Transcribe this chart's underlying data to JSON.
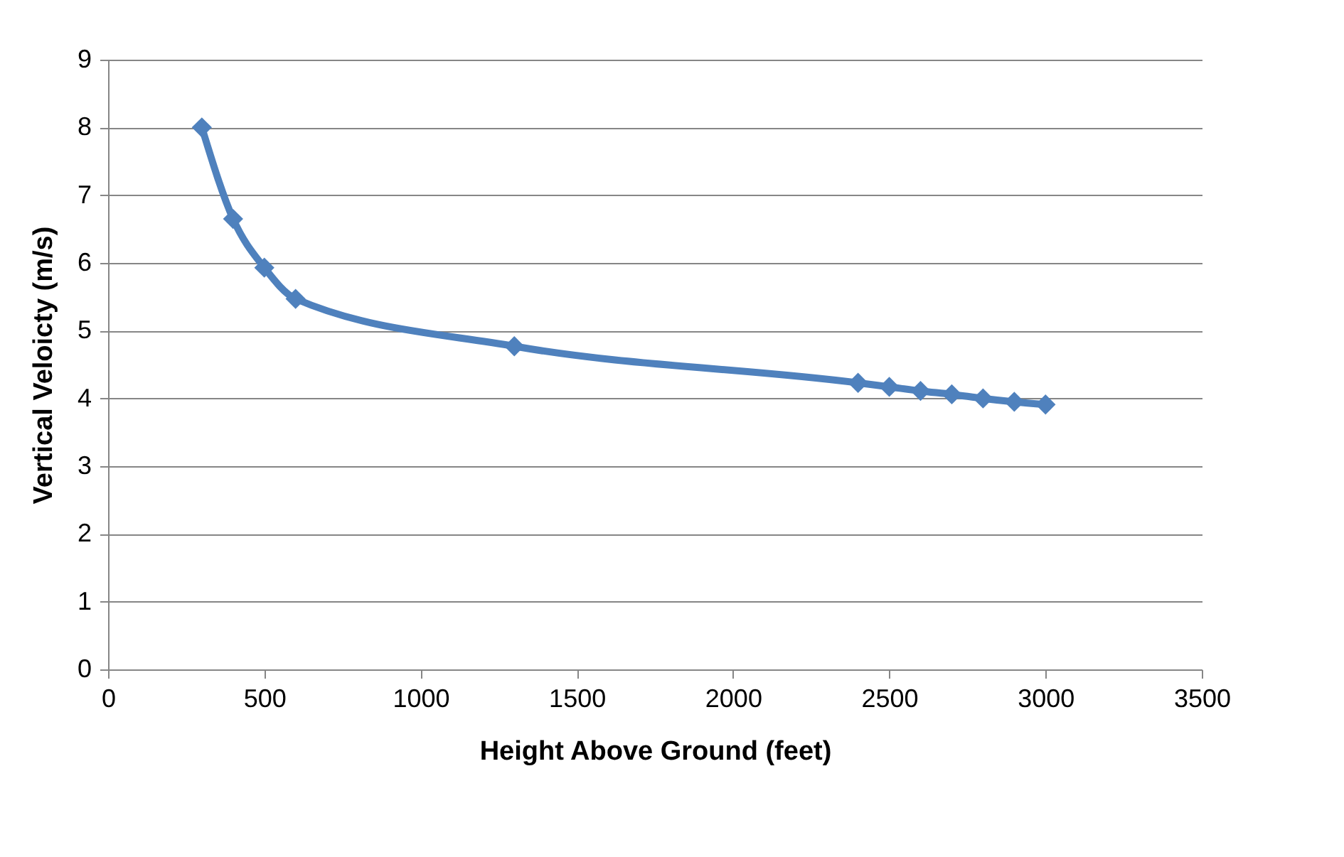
{
  "chart_data": {
    "type": "line",
    "xlabel": "Height Above Ground (feet)",
    "ylabel": "Vertical Veloicty (m/s)",
    "x": [
      300,
      400,
      500,
      600,
      1300,
      2400,
      2500,
      2600,
      2700,
      2800,
      2900,
      3000
    ],
    "series": [
      {
        "color": "#4f81bd",
        "values": [
          8.0,
          6.65,
          5.93,
          5.47,
          4.77,
          4.23,
          4.17,
          4.11,
          4.06,
          4.0,
          3.95,
          3.91
        ]
      }
    ],
    "xlim": [
      0,
      3500
    ],
    "xticks": [
      0,
      500,
      1000,
      1500,
      2000,
      2500,
      3000,
      3500
    ],
    "ylim": [
      0,
      9
    ],
    "yticks": [
      0,
      1,
      2,
      3,
      4,
      5,
      6,
      7,
      8,
      9
    ],
    "grid": "y",
    "marker": "diamond",
    "line_style": "solid"
  }
}
